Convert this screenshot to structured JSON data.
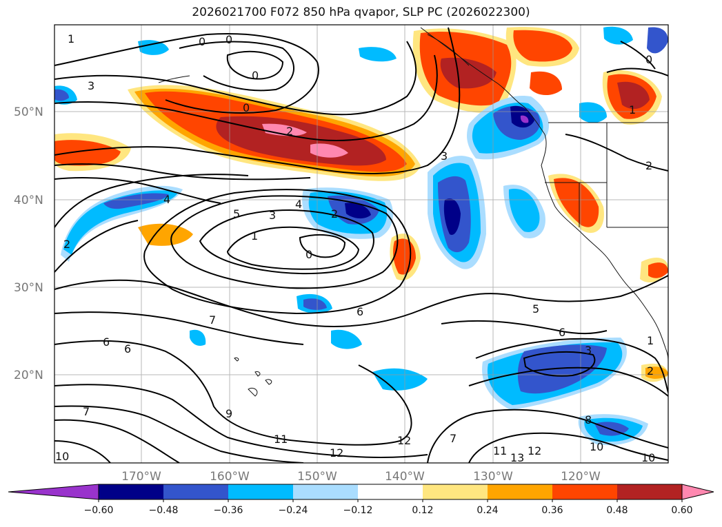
{
  "title": "2026021700 F072 850 hPa qvapor, SLP PC (2026022300)",
  "latitude_labels": [
    "50°N",
    "40°N",
    "30°N",
    "20°N"
  ],
  "longitude_labels": [
    "170°W",
    "160°W",
    "150°W",
    "140°W",
    "130°W",
    "120°W"
  ],
  "contour_labels": [
    "1",
    "0",
    "0",
    "0",
    "3",
    "0",
    "2",
    "4",
    "5",
    "3",
    "4",
    "2",
    "1",
    "0",
    "3",
    "6",
    "5",
    "6",
    "3",
    "1",
    "2",
    "7",
    "6",
    "6",
    "7",
    "9",
    "11",
    "12",
    "12",
    "7",
    "11",
    "12",
    "13",
    "8",
    "10",
    "10",
    "10",
    "2",
    "0",
    "1",
    "2"
  ],
  "colorbar": {
    "tick_labels": [
      "−0.60",
      "−0.48",
      "−0.36",
      "−0.24",
      "−0.12",
      "0.12",
      "0.24",
      "0.36",
      "0.48",
      "0.60"
    ],
    "colors": [
      "#9933cc",
      "#000088",
      "#3355cc",
      "#00bbff",
      "#aaddff",
      "#ffffff",
      "#ffe680",
      "#ffa500",
      "#ff4500",
      "#b22222",
      "#ff88b0"
    ]
  },
  "shading_colors": {
    "neg_light": "#aaddff",
    "neg_mid": "#00bbff",
    "neg_strong": "#3355cc",
    "neg_max": "#000088",
    "neg_extreme": "#9933cc",
    "pos_light": "#ffe680",
    "pos_mid": "#ffa500",
    "pos_strong": "#ff4500",
    "pos_max": "#b22222",
    "pos_extreme": "#ff88b0"
  }
}
